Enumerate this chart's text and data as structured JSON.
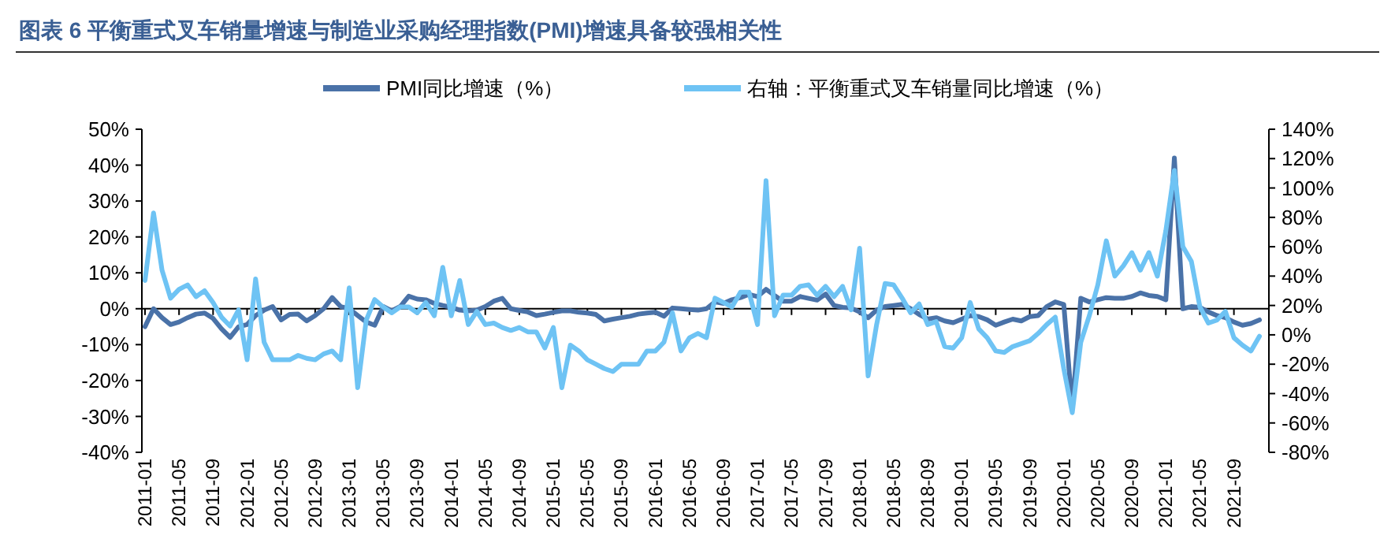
{
  "chart_data": {
    "type": "line",
    "title": "图表 6 平衡重式叉车销量增速与制造业采购经理指数(PMI)增速具备较强相关性",
    "categories": [
      "2011-01",
      null,
      null,
      null,
      "2011-05",
      null,
      null,
      null,
      "2011-09",
      null,
      null,
      null,
      "2012-01",
      null,
      null,
      null,
      "2012-05",
      null,
      null,
      null,
      "2012-09",
      null,
      null,
      null,
      "2013-01",
      null,
      null,
      null,
      "2013-05",
      null,
      null,
      null,
      "2013-09",
      null,
      null,
      null,
      "2014-01",
      null,
      null,
      null,
      "2014-05",
      null,
      null,
      null,
      "2014-09",
      null,
      null,
      null,
      "2015-01",
      null,
      null,
      null,
      "2015-05",
      null,
      null,
      null,
      "2015-09",
      null,
      null,
      null,
      "2016-01",
      null,
      null,
      null,
      "2016-05",
      null,
      null,
      null,
      "2016-09",
      null,
      null,
      null,
      "2017-01",
      null,
      null,
      null,
      "2017-05",
      null,
      null,
      null,
      "2017-09",
      null,
      null,
      null,
      "2018-01",
      null,
      null,
      null,
      "2018-05",
      null,
      null,
      null,
      "2018-09",
      null,
      null,
      null,
      "2019-01",
      null,
      null,
      null,
      "2019-05",
      null,
      null,
      null,
      "2019-09",
      null,
      null,
      null,
      "2020-01",
      null,
      null,
      null,
      "2020-05",
      null,
      null,
      null,
      "2020-09",
      null,
      null,
      null,
      "2021-01",
      null,
      null,
      null,
      "2021-05",
      null,
      null,
      null,
      "2021-09",
      null,
      null,
      null
    ],
    "series": [
      {
        "name": "PMI同比增速（%）",
        "color": "#4a72a8",
        "values": [
          -5,
          0,
          -2.5,
          -4.4,
          -3.7,
          -2.5,
          -1.5,
          -1.2,
          -2.7,
          -5.6,
          -8,
          -5,
          -4.4,
          -1.9,
          -0.4,
          0.6,
          -3.1,
          -1.6,
          -1.5,
          -3.4,
          -1.9,
          0,
          3.1,
          0.6,
          0,
          -1.9,
          -3.7,
          -4.6,
          0.6,
          -0.6,
          0.6,
          3.5,
          2.7,
          2.5,
          1.5,
          0.9,
          0.4,
          -0.4,
          -0.6,
          -0.4,
          0.6,
          2.1,
          2.9,
          0,
          -0.5,
          -0.9,
          -1.9,
          -1.5,
          -1,
          -0.6,
          -0.6,
          -1,
          -1.2,
          -1.6,
          -3.4,
          -2.9,
          -2.5,
          -2.1,
          -1.5,
          -1.2,
          -1,
          -2.1,
          0.2,
          0,
          -0.2,
          -0.4,
          0,
          1.9,
          1.5,
          2.5,
          3.1,
          4,
          3.4,
          5.4,
          3.7,
          2.1,
          2.1,
          3.4,
          2.9,
          2.4,
          4.1,
          0.9,
          0.4,
          0.2,
          -0.9,
          -2.5,
          -0.4,
          0.6,
          0.9,
          1.2,
          0,
          -1.6,
          -2.9,
          -2.5,
          -3.4,
          -3.9,
          -2.9,
          -1.9,
          -2.2,
          -3.1,
          -4.6,
          -3.7,
          -2.9,
          -3.4,
          -2.2,
          -1.9,
          0.6,
          1.9,
          1.2,
          -28,
          2.9,
          1.9,
          2.5,
          3.1,
          2.9,
          2.9,
          3.4,
          4.4,
          3.7,
          3.4,
          2.5,
          42,
          0,
          0.6,
          0.4,
          -0.9,
          -1.9,
          -2.5,
          -3.7,
          -4.6,
          -4.1,
          -3.1
        ]
      },
      {
        "name": "右轴：平衡重式叉车销量同比增速（%）",
        "color": "#6ec3f4",
        "axis": "y2",
        "values": [
          37,
          83,
          44,
          25,
          31,
          34,
          26,
          30,
          22,
          12,
          6,
          17,
          -17,
          38,
          -5,
          -17,
          -17,
          -17,
          -14,
          -16,
          -17,
          -13,
          -11,
          -17,
          32,
          -36,
          10,
          24,
          19,
          15,
          19,
          19,
          15,
          22,
          13,
          46,
          13,
          37,
          7,
          16,
          7,
          8,
          5,
          3,
          5,
          2,
          2,
          -9,
          5,
          -36,
          -7,
          -11,
          -17,
          -20,
          -23,
          -25,
          -20,
          -20,
          -20,
          -11,
          -11,
          -5,
          15,
          -11,
          -2,
          1,
          -2,
          25,
          22,
          19,
          29,
          29,
          7,
          105,
          13,
          27,
          27,
          33,
          34,
          27,
          33,
          26,
          33,
          17,
          59,
          -28,
          7,
          35,
          34,
          25,
          15,
          21,
          7,
          9,
          -8,
          -9,
          -2,
          22,
          4,
          -2,
          -11,
          -12,
          -8,
          -6,
          -4,
          1,
          7,
          12,
          -23,
          -53,
          -5,
          13,
          34,
          64,
          40,
          47,
          56,
          44,
          56,
          40,
          71,
          112,
          60,
          50,
          19,
          8,
          10,
          16,
          -2,
          -7,
          -11,
          -1
        ]
      }
    ],
    "ylim": [
      -40,
      50
    ],
    "yticks": [
      {
        "value": -40,
        "label": "-40%"
      },
      {
        "value": -30,
        "label": "-30%"
      },
      {
        "value": -20,
        "label": "-20%"
      },
      {
        "value": -10,
        "label": "-10%"
      },
      {
        "value": 0,
        "label": "0%"
      },
      {
        "value": 10,
        "label": "10%"
      },
      {
        "value": 20,
        "label": "20%"
      },
      {
        "value": 30,
        "label": "30%"
      },
      {
        "value": 40,
        "label": "40%"
      },
      {
        "value": 50,
        "label": "50%"
      }
    ],
    "y2lim": [
      -80,
      140
    ],
    "y2ticks": [
      {
        "value": -80,
        "label": "-80%"
      },
      {
        "value": -60,
        "label": "-60%"
      },
      {
        "value": -40,
        "label": "-40%"
      },
      {
        "value": -20,
        "label": "-20%"
      },
      {
        "value": 0,
        "label": "0%"
      },
      {
        "value": 20,
        "label": "20%"
      },
      {
        "value": 40,
        "label": "40%"
      },
      {
        "value": 60,
        "label": "60%"
      },
      {
        "value": 80,
        "label": "80%"
      },
      {
        "value": 100,
        "label": "100%"
      },
      {
        "value": 120,
        "label": "120%"
      },
      {
        "value": 140,
        "label": "140%"
      }
    ],
    "legend": "top",
    "marker": "none",
    "line_style": "solid"
  }
}
